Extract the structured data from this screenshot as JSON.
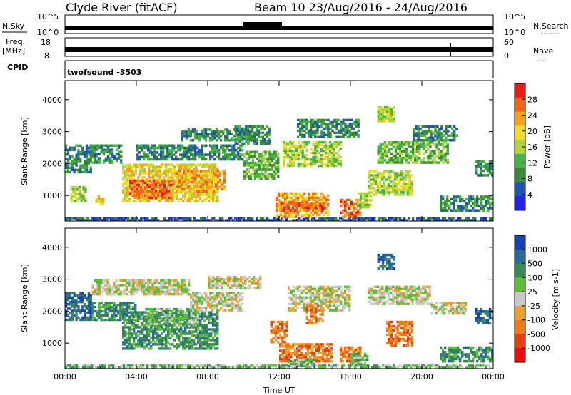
{
  "header": {
    "station": "Clyde River (fitACF)",
    "beam_date": "Beam 10 23/Aug/2016 - 24/Aug/2016"
  },
  "strips": {
    "nsky": {
      "left_label": "N.Sky",
      "left_tick_top": "10^5",
      "left_tick_bottom": "10^0",
      "right_tick_top": "10^5",
      "right_tick_bottom": "10^0",
      "right_label": "N.Search",
      "right_legend": "........"
    },
    "freq": {
      "left_label": "Freq.",
      "left_unit": "[MHz]",
      "left_tick_top": "18",
      "left_tick_bottom": "8",
      "right_tick_top": "60",
      "right_tick_bottom": "0",
      "right_label": "Nave",
      "right_legend": "...."
    },
    "cpid": {
      "label": "CPID",
      "value": "twofsound -3503"
    }
  },
  "colors": {
    "power": [
      "#2323e6",
      "#2255b0",
      "#3a8a3a",
      "#46b446",
      "#b4d23c",
      "#f0dc2a",
      "#f4a21e",
      "#ee6418",
      "#e61e14"
    ],
    "velocity": [
      "#1a3fb0",
      "#2a6a9a",
      "#3a8a56",
      "#5cbd38",
      "#c8c8c8",
      "#e8a030",
      "#ee7a18",
      "#e64010",
      "#e61010"
    ]
  },
  "chart_data": [
    {
      "type": "heatmap",
      "title": "",
      "ylabel": "Slant Range [km]",
      "xlabel": "",
      "x_ticks": [
        "00:00",
        "04:00",
        "08:00",
        "12:00",
        "16:00",
        "20:00",
        "00:00"
      ],
      "y_ticks": [
        "1000",
        "2000",
        "3000",
        "4000"
      ],
      "ylim": [
        200,
        4600
      ],
      "colorbar": {
        "label": "Power [dB]",
        "ticks": [
          "4",
          "8",
          "12",
          "16",
          "20",
          "24",
          "28"
        ],
        "range": [
          0,
          30
        ]
      },
      "regions": [
        {
          "t0": 0.0,
          "t1": 24.0,
          "r0": 200,
          "r1": 320,
          "level": 4
        },
        {
          "t0": 0.0,
          "t1": 1.5,
          "r0": 1700,
          "r1": 2600,
          "level": 6
        },
        {
          "t0": 0.3,
          "t1": 1.2,
          "r0": 800,
          "r1": 1300,
          "level": 14
        },
        {
          "t0": 1.5,
          "t1": 3.2,
          "r0": 2000,
          "r1": 2600,
          "level": 7
        },
        {
          "t0": 1.7,
          "t1": 2.2,
          "r0": 700,
          "r1": 1000,
          "level": 20
        },
        {
          "t0": 3.2,
          "t1": 8.6,
          "r0": 800,
          "r1": 2000,
          "level": 17
        },
        {
          "t0": 3.6,
          "t1": 6.0,
          "r0": 900,
          "r1": 1500,
          "level": 27
        },
        {
          "t0": 6.0,
          "t1": 9.0,
          "r0": 1100,
          "r1": 1800,
          "level": 22
        },
        {
          "t0": 4.0,
          "t1": 10.0,
          "r0": 2100,
          "r1": 2600,
          "level": 7
        },
        {
          "t0": 6.5,
          "t1": 10.5,
          "r0": 2700,
          "r1": 3100,
          "level": 6
        },
        {
          "t0": 9.5,
          "t1": 11.5,
          "r0": 2600,
          "r1": 3200,
          "level": 6
        },
        {
          "t0": 10.0,
          "t1": 12.0,
          "r0": 1500,
          "r1": 2400,
          "level": 10
        },
        {
          "t0": 11.8,
          "t1": 14.8,
          "r0": 300,
          "r1": 1100,
          "level": 24
        },
        {
          "t0": 12.0,
          "t1": 14.6,
          "r0": 500,
          "r1": 800,
          "level": 28
        },
        {
          "t0": 12.2,
          "t1": 15.5,
          "r0": 1900,
          "r1": 2700,
          "level": 14
        },
        {
          "t0": 13.0,
          "t1": 16.5,
          "r0": 2800,
          "r1": 3400,
          "level": 7
        },
        {
          "t0": 15.4,
          "t1": 16.6,
          "r0": 300,
          "r1": 900,
          "level": 26
        },
        {
          "t0": 16.4,
          "t1": 17.2,
          "r0": 600,
          "r1": 1100,
          "level": 16
        },
        {
          "t0": 17.0,
          "t1": 19.5,
          "r0": 1000,
          "r1": 1800,
          "level": 16
        },
        {
          "t0": 17.5,
          "t1": 21.5,
          "r0": 2000,
          "r1": 2700,
          "level": 10
        },
        {
          "t0": 17.5,
          "t1": 18.5,
          "r0": 3300,
          "r1": 3800,
          "level": 14
        },
        {
          "t0": 19.5,
          "t1": 22.0,
          "r0": 2700,
          "r1": 3200,
          "level": 7
        },
        {
          "t0": 21.0,
          "t1": 24.0,
          "r0": 500,
          "r1": 1000,
          "level": 8
        },
        {
          "t0": 23.0,
          "t1": 24.0,
          "r0": 1600,
          "r1": 2100,
          "level": 6
        }
      ]
    },
    {
      "type": "heatmap",
      "title": "",
      "ylabel": "Slant Range [km]",
      "xlabel": "Time UT",
      "x_ticks": [
        "00:00",
        "04:00",
        "08:00",
        "12:00",
        "16:00",
        "20:00",
        "00:00"
      ],
      "y_ticks": [
        "1000",
        "2000",
        "3000",
        "4000"
      ],
      "ylim": [
        200,
        4600
      ],
      "colorbar": {
        "label": "Velocity [m s-1]",
        "ticks": [
          "1000",
          "500",
          "100",
          "25",
          "-25",
          "-100",
          "-500",
          "-1000"
        ],
        "range": [
          -1000,
          1000
        ]
      },
      "regions": [
        {
          "t0": 0.0,
          "t1": 24.0,
          "r0": 200,
          "r1": 330,
          "level": 3
        },
        {
          "t0": 0.0,
          "t1": 1.5,
          "r0": 1700,
          "r1": 2600,
          "level": 1
        },
        {
          "t0": 1.5,
          "t1": 4.0,
          "r0": 1700,
          "r1": 2300,
          "level": 2
        },
        {
          "t0": 1.5,
          "t1": 7.0,
          "r0": 2500,
          "r1": 3000,
          "level": 4
        },
        {
          "t0": 3.2,
          "t1": 8.6,
          "r0": 800,
          "r1": 2000,
          "level": 2
        },
        {
          "t0": 4.5,
          "t1": 7.5,
          "r0": 1500,
          "r1": 2100,
          "level": 3
        },
        {
          "t0": 7.0,
          "t1": 10.0,
          "r0": 2000,
          "r1": 2600,
          "level": 4
        },
        {
          "t0": 8.0,
          "t1": 11.0,
          "r0": 2700,
          "r1": 3100,
          "level": 4
        },
        {
          "t0": 11.5,
          "t1": 12.5,
          "r0": 1000,
          "r1": 1700,
          "level": 6
        },
        {
          "t0": 12.0,
          "t1": 15.0,
          "r0": 400,
          "r1": 1000,
          "level": 6
        },
        {
          "t0": 12.5,
          "t1": 14.0,
          "r0": 250,
          "r1": 500,
          "level": 3
        },
        {
          "t0": 12.5,
          "t1": 16.0,
          "r0": 2000,
          "r1": 2800,
          "level": 4
        },
        {
          "t0": 13.5,
          "t1": 14.5,
          "r0": 1600,
          "r1": 2200,
          "level": 6
        },
        {
          "t0": 15.4,
          "t1": 16.6,
          "r0": 400,
          "r1": 900,
          "level": 6
        },
        {
          "t0": 16.0,
          "t1": 17.0,
          "r0": 300,
          "r1": 700,
          "level": 3
        },
        {
          "t0": 17.0,
          "t1": 20.5,
          "r0": 2200,
          "r1": 2800,
          "level": 4
        },
        {
          "t0": 18.0,
          "t1": 19.5,
          "r0": 900,
          "r1": 1700,
          "level": 6
        },
        {
          "t0": 17.5,
          "t1": 18.5,
          "r0": 3300,
          "r1": 3800,
          "level": 1
        },
        {
          "t0": 20.5,
          "t1": 22.5,
          "r0": 1900,
          "r1": 2300,
          "level": 4
        },
        {
          "t0": 21.0,
          "t1": 24.0,
          "r0": 400,
          "r1": 900,
          "level": 2
        },
        {
          "t0": 23.0,
          "t1": 24.0,
          "r0": 1600,
          "r1": 2100,
          "level": 1
        }
      ]
    }
  ]
}
